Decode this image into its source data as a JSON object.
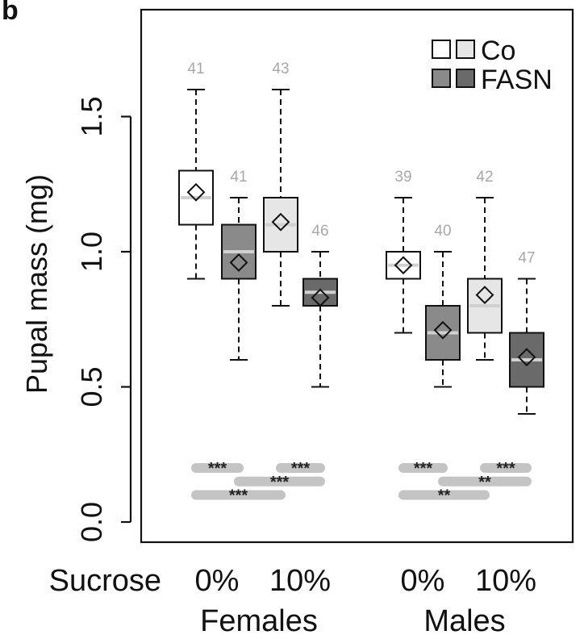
{
  "panel_label": "b",
  "chart_data": {
    "type": "box",
    "ylabel": "Pupal mass (mg)",
    "ylim": [
      -0.1,
      1.9
    ],
    "yticks": [
      0.0,
      0.5,
      1.0,
      1.5
    ],
    "ytick_labels": [
      "0.0",
      "0.5",
      "1.0",
      "1.5"
    ],
    "x_row_label": "Sucrose",
    "groups": [
      "Females",
      "Males"
    ],
    "sucrose_levels": [
      "0%",
      "10%",
      "0%",
      "10%"
    ],
    "legend": [
      {
        "label": "Co",
        "colors": [
          "#ffffff",
          "#e6e6e6"
        ]
      },
      {
        "label": "FASN",
        "colors": [
          "#8a8a8a",
          "#6a6a6a"
        ]
      }
    ],
    "boxes": [
      {
        "group": "Females",
        "sucrose": "0%",
        "treatment": "Co",
        "n": "41",
        "min": 0.9,
        "q1": 1.1,
        "median": 1.2,
        "q3": 1.3,
        "max": 1.6,
        "mean": 1.22,
        "fill": "#ffffff"
      },
      {
        "group": "Females",
        "sucrose": "0%",
        "treatment": "FASN",
        "n": "41",
        "min": 0.6,
        "q1": 0.9,
        "median": 1.0,
        "q3": 1.1,
        "max": 1.2,
        "mean": 0.96,
        "fill": "#8a8a8a"
      },
      {
        "group": "Females",
        "sucrose": "10%",
        "treatment": "Co",
        "n": "43",
        "min": 0.8,
        "q1": 1.0,
        "median": 1.1,
        "q3": 1.2,
        "max": 1.6,
        "mean": 1.11,
        "fill": "#e6e6e6"
      },
      {
        "group": "Females",
        "sucrose": "10%",
        "treatment": "FASN",
        "n": "46",
        "min": 0.5,
        "q1": 0.8,
        "median": 0.85,
        "q3": 0.9,
        "max": 1.0,
        "mean": 0.83,
        "fill": "#6a6a6a"
      },
      {
        "group": "Males",
        "sucrose": "0%",
        "treatment": "Co",
        "n": "39",
        "min": 0.7,
        "q1": 0.9,
        "median": 0.95,
        "q3": 1.0,
        "max": 1.2,
        "mean": 0.95,
        "fill": "#ffffff"
      },
      {
        "group": "Males",
        "sucrose": "0%",
        "treatment": "FASN",
        "n": "40",
        "min": 0.5,
        "q1": 0.6,
        "median": 0.7,
        "q3": 0.8,
        "max": 1.0,
        "mean": 0.71,
        "fill": "#8a8a8a"
      },
      {
        "group": "Males",
        "sucrose": "10%",
        "treatment": "Co",
        "n": "42",
        "min": 0.6,
        "q1": 0.7,
        "median": 0.8,
        "q3": 0.9,
        "max": 1.2,
        "mean": 0.84,
        "fill": "#e6e6e6"
      },
      {
        "group": "Males",
        "sucrose": "10%",
        "treatment": "FASN",
        "n": "47",
        "min": 0.4,
        "q1": 0.5,
        "median": 0.6,
        "q3": 0.7,
        "max": 0.9,
        "mean": 0.61,
        "fill": "#6a6a6a"
      }
    ],
    "significance": [
      {
        "from": 0,
        "to": 1,
        "y": 0.2,
        "label": "***"
      },
      {
        "from": 2,
        "to": 3,
        "y": 0.2,
        "label": "***"
      },
      {
        "from": 1,
        "to": 3,
        "y": 0.15,
        "label": "***"
      },
      {
        "from": 0,
        "to": 2,
        "y": 0.1,
        "label": "***"
      },
      {
        "from": 4,
        "to": 5,
        "y": 0.2,
        "label": "***"
      },
      {
        "from": 6,
        "to": 7,
        "y": 0.2,
        "label": "***"
      },
      {
        "from": 5,
        "to": 7,
        "y": 0.15,
        "label": "**"
      },
      {
        "from": 4,
        "to": 6,
        "y": 0.1,
        "label": "**"
      }
    ]
  }
}
